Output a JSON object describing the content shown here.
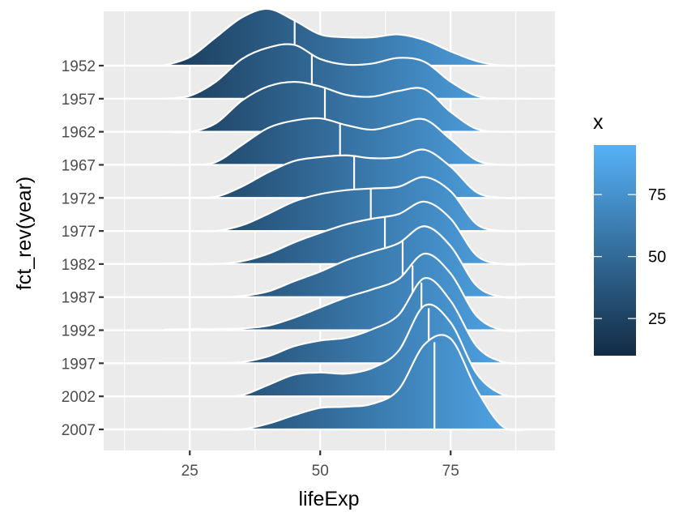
{
  "chart_data": {
    "type": "ridgeline",
    "title": "",
    "xlabel": "lifeExp",
    "ylabel": "fct_rev(year)",
    "xlim": [
      8.5,
      95
    ],
    "x_ticks": [
      25,
      50,
      75
    ],
    "x_minor_ticks": [
      12.5,
      37.5,
      62.5,
      87.5
    ],
    "categories": [
      "1952",
      "1957",
      "1962",
      "1967",
      "1972",
      "1977",
      "1982",
      "1987",
      "1992",
      "1997",
      "2002",
      "2007"
    ],
    "density_grid": [
      20,
      25,
      30,
      35,
      40,
      45,
      50,
      55,
      60,
      65,
      70,
      75,
      80,
      85,
      90
    ],
    "series": [
      {
        "name": "1952",
        "median": 45.1,
        "density": [
          0.0,
          0.15,
          0.5,
          0.85,
          1.0,
          0.8,
          0.55,
          0.5,
          0.5,
          0.55,
          0.45,
          0.25,
          0.08,
          0.0,
          0.0
        ]
      },
      {
        "name": "1957",
        "median": 48.4,
        "density": [
          0.0,
          0.05,
          0.3,
          0.7,
          0.9,
          0.95,
          0.7,
          0.6,
          0.62,
          0.72,
          0.65,
          0.3,
          0.05,
          0.0,
          0.0
        ]
      },
      {
        "name": "1962",
        "median": 50.9,
        "density": [
          0.0,
          0.0,
          0.15,
          0.55,
          0.8,
          0.88,
          0.8,
          0.65,
          0.62,
          0.72,
          0.75,
          0.35,
          0.05,
          0.0,
          0.0
        ]
      },
      {
        "name": "1967",
        "median": 53.8,
        "density": [
          0.0,
          0.0,
          0.05,
          0.35,
          0.65,
          0.78,
          0.82,
          0.7,
          0.62,
          0.72,
          0.8,
          0.45,
          0.08,
          0.0,
          0.0
        ]
      },
      {
        "name": "1972",
        "median": 56.5,
        "density": [
          0.0,
          0.0,
          0.02,
          0.2,
          0.45,
          0.65,
          0.72,
          0.75,
          0.7,
          0.72,
          0.85,
          0.55,
          0.1,
          0.0,
          0.0
        ]
      },
      {
        "name": "1977",
        "median": 59.7,
        "density": [
          0.0,
          0.0,
          0.0,
          0.1,
          0.3,
          0.52,
          0.65,
          0.72,
          0.75,
          0.78,
          0.95,
          0.7,
          0.12,
          0.0,
          0.0
        ]
      },
      {
        "name": "1982",
        "median": 62.4,
        "density": [
          0.0,
          0.0,
          0.0,
          0.05,
          0.18,
          0.38,
          0.55,
          0.7,
          0.8,
          0.88,
          1.1,
          0.8,
          0.15,
          0.0,
          0.0
        ]
      },
      {
        "name": "1987",
        "median": 65.8,
        "density": [
          0.0,
          0.0,
          0.0,
          0.02,
          0.1,
          0.28,
          0.45,
          0.65,
          0.8,
          0.95,
          1.25,
          0.9,
          0.2,
          0.0,
          0.0
        ]
      },
      {
        "name": "1992",
        "median": 67.7,
        "density": [
          0.01,
          0.02,
          0.02,
          0.03,
          0.08,
          0.22,
          0.4,
          0.58,
          0.72,
          0.9,
          1.35,
          1.0,
          0.25,
          0.0,
          0.0
        ]
      },
      {
        "name": "1997",
        "median": 69.4,
        "density": [
          0.0,
          0.0,
          0.0,
          0.02,
          0.12,
          0.3,
          0.4,
          0.45,
          0.6,
          0.85,
          1.5,
          1.1,
          0.3,
          0.02,
          0.0
        ]
      },
      {
        "name": "2002",
        "median": 70.8,
        "density": [
          0.0,
          0.0,
          0.0,
          0.02,
          0.2,
          0.38,
          0.42,
          0.4,
          0.5,
          0.8,
          1.6,
          1.3,
          0.4,
          0.03,
          0.0
        ]
      },
      {
        "name": "2007",
        "median": 71.9,
        "density": [
          0.0,
          0.0,
          0.0,
          0.0,
          0.1,
          0.25,
          0.38,
          0.4,
          0.45,
          0.7,
          1.5,
          1.6,
          0.7,
          0.05,
          0.0
        ]
      }
    ],
    "fill_gradient": {
      "variable": "x",
      "low_color": "#132B43",
      "high_color": "#56B1F7",
      "range": [
        10,
        95
      ]
    },
    "legend": {
      "title": "x",
      "ticks": [
        25,
        50,
        75
      ],
      "placement": "right"
    },
    "outline_color": "#ffffff",
    "median_line_color": "#ffffff",
    "grid": true,
    "panel_background": "#ebebeb"
  }
}
